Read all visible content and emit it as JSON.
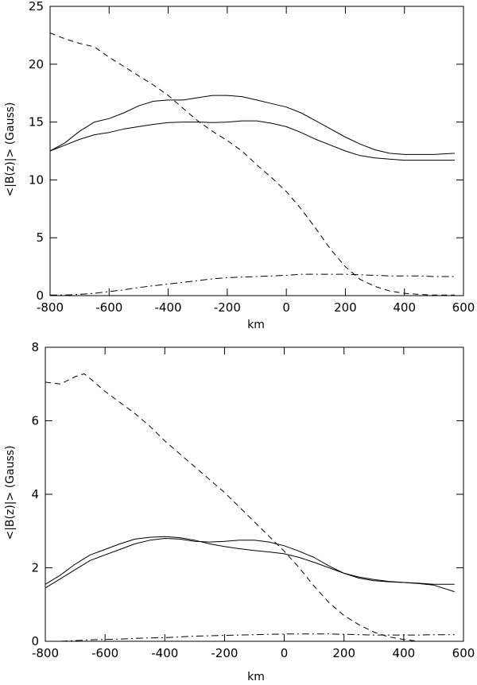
{
  "chart_data": [
    {
      "type": "line",
      "xlabel": "km",
      "ylabel": "<|B(z)|> (Gauss)",
      "xlim": [
        -800,
        600
      ],
      "ylim": [
        0,
        25
      ],
      "xticks": [
        -800,
        -600,
        -400,
        -200,
        0,
        200,
        400,
        600
      ],
      "yticks": [
        0,
        5,
        10,
        15,
        20,
        25
      ],
      "grid": false,
      "series": [
        {
          "style": "solid",
          "color": "#000000",
          "x": [
            -800,
            -750,
            -700,
            -650,
            -600,
            -550,
            -500,
            -450,
            -400,
            -350,
            -300,
            -250,
            -200,
            -150,
            -100,
            -50,
            0,
            50,
            100,
            150,
            200,
            250,
            300,
            350,
            400,
            450,
            500,
            570
          ],
          "y": [
            12.5,
            13.2,
            14.2,
            15.0,
            15.3,
            15.8,
            16.4,
            16.8,
            16.9,
            16.9,
            17.1,
            17.3,
            17.3,
            17.2,
            16.9,
            16.6,
            16.3,
            15.8,
            15.1,
            14.4,
            13.7,
            13.1,
            12.6,
            12.3,
            12.2,
            12.2,
            12.2,
            12.3
          ]
        },
        {
          "style": "solid",
          "color": "#000000",
          "x": [
            -800,
            -750,
            -700,
            -650,
            -600,
            -550,
            -500,
            -450,
            -400,
            -350,
            -300,
            -250,
            -200,
            -150,
            -100,
            -50,
            0,
            50,
            100,
            150,
            200,
            250,
            300,
            350,
            400,
            450,
            500,
            570
          ],
          "y": [
            12.5,
            13.0,
            13.5,
            13.9,
            14.1,
            14.4,
            14.6,
            14.8,
            14.95,
            15.0,
            15.0,
            14.95,
            15.0,
            15.1,
            15.1,
            14.9,
            14.6,
            14.1,
            13.5,
            13.0,
            12.5,
            12.1,
            11.9,
            11.8,
            11.7,
            11.7,
            11.7,
            11.7
          ]
        },
        {
          "style": "dashed",
          "color": "#000000",
          "x": [
            -800,
            -750,
            -700,
            -650,
            -600,
            -550,
            -500,
            -450,
            -400,
            -350,
            -300,
            -250,
            -200,
            -150,
            -100,
            -50,
            0,
            50,
            100,
            150,
            200,
            250,
            300,
            350,
            400,
            450,
            500,
            570
          ],
          "y": [
            22.7,
            22.2,
            21.8,
            21.5,
            20.6,
            19.8,
            19.0,
            18.2,
            17.3,
            16.2,
            15.1,
            14.2,
            13.4,
            12.5,
            11.3,
            10.2,
            9.0,
            7.5,
            5.8,
            4.0,
            2.5,
            1.4,
            0.8,
            0.4,
            0.2,
            0.1,
            0.05,
            0.05
          ]
        },
        {
          "style": "dashdot",
          "color": "#000000",
          "x": [
            -800,
            -750,
            -700,
            -650,
            -600,
            -550,
            -500,
            -450,
            -400,
            -350,
            -300,
            -250,
            -200,
            -150,
            -100,
            -50,
            0,
            50,
            100,
            150,
            200,
            250,
            300,
            350,
            400,
            450,
            500,
            570
          ],
          "y": [
            0.05,
            0.05,
            0.1,
            0.2,
            0.35,
            0.5,
            0.7,
            0.85,
            1.0,
            1.15,
            1.3,
            1.45,
            1.55,
            1.6,
            1.65,
            1.7,
            1.75,
            1.85,
            1.85,
            1.85,
            1.85,
            1.8,
            1.75,
            1.7,
            1.7,
            1.7,
            1.65,
            1.65
          ]
        }
      ]
    },
    {
      "type": "line",
      "xlabel": "km",
      "ylabel": "<|B(z)|> (Gauss)",
      "xlim": [
        -800,
        600
      ],
      "ylim": [
        0,
        8
      ],
      "xticks": [
        -800,
        -600,
        -400,
        -200,
        0,
        200,
        400,
        600
      ],
      "yticks": [
        0,
        2,
        4,
        6,
        8
      ],
      "grid": false,
      "series": [
        {
          "style": "solid",
          "color": "#000000",
          "x": [
            -800,
            -750,
            -700,
            -650,
            -600,
            -550,
            -500,
            -450,
            -400,
            -350,
            -300,
            -250,
            -200,
            -150,
            -100,
            -50,
            0,
            50,
            100,
            150,
            200,
            250,
            300,
            350,
            400,
            450,
            500,
            570
          ],
          "y": [
            1.55,
            1.8,
            2.1,
            2.35,
            2.5,
            2.65,
            2.78,
            2.83,
            2.85,
            2.82,
            2.75,
            2.65,
            2.58,
            2.52,
            2.47,
            2.43,
            2.38,
            2.28,
            2.15,
            2.0,
            1.85,
            1.75,
            1.68,
            1.63,
            1.6,
            1.57,
            1.53,
            1.35
          ]
        },
        {
          "style": "solid",
          "color": "#000000",
          "x": [
            -800,
            -750,
            -700,
            -650,
            -600,
            -550,
            -500,
            -450,
            -400,
            -350,
            -300,
            -250,
            -200,
            -150,
            -100,
            -50,
            0,
            50,
            100,
            150,
            200,
            250,
            300,
            350,
            400,
            450,
            500,
            570
          ],
          "y": [
            1.45,
            1.7,
            1.95,
            2.2,
            2.35,
            2.5,
            2.65,
            2.75,
            2.8,
            2.78,
            2.72,
            2.7,
            2.72,
            2.75,
            2.75,
            2.7,
            2.6,
            2.45,
            2.28,
            2.05,
            1.85,
            1.72,
            1.65,
            1.62,
            1.6,
            1.58,
            1.55,
            1.55
          ]
        },
        {
          "style": "dashed",
          "color": "#000000",
          "x": [
            -800,
            -750,
            -700,
            -670,
            -650,
            -600,
            -550,
            -500,
            -450,
            -400,
            -350,
            -300,
            -250,
            -200,
            -150,
            -100,
            -50,
            0,
            50,
            100,
            150,
            200,
            250,
            300,
            350,
            400,
            450,
            500,
            570
          ],
          "y": [
            7.05,
            7.0,
            7.2,
            7.28,
            7.15,
            6.8,
            6.5,
            6.2,
            5.85,
            5.45,
            5.1,
            4.75,
            4.4,
            4.05,
            3.65,
            3.25,
            2.85,
            2.45,
            2.0,
            1.5,
            1.05,
            0.7,
            0.45,
            0.25,
            0.12,
            0.05,
            0.0,
            0.0,
            0.0
          ]
        },
        {
          "style": "dashdot",
          "color": "#000000",
          "x": [
            -800,
            -750,
            -700,
            -650,
            -600,
            -550,
            -500,
            -450,
            -400,
            -350,
            -300,
            -250,
            -200,
            -150,
            -100,
            -50,
            0,
            50,
            100,
            150,
            200,
            250,
            300,
            350,
            400,
            450,
            500,
            570
          ],
          "y": [
            0.0,
            0.0,
            0.02,
            0.04,
            0.05,
            0.06,
            0.08,
            0.09,
            0.1,
            0.12,
            0.14,
            0.15,
            0.16,
            0.17,
            0.18,
            0.19,
            0.2,
            0.2,
            0.2,
            0.2,
            0.19,
            0.18,
            0.17,
            0.17,
            0.17,
            0.17,
            0.18,
            0.18
          ]
        }
      ]
    }
  ]
}
